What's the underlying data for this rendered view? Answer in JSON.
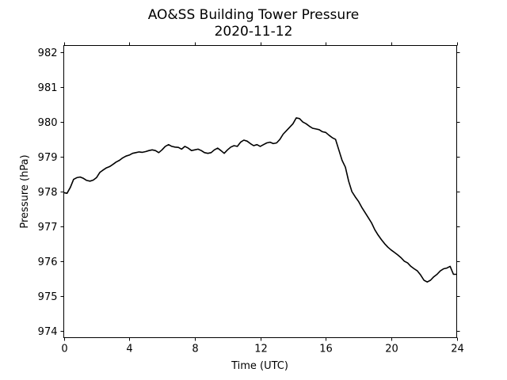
{
  "chart_data": {
    "type": "line",
    "title": "AO&SS Building Tower Pressure",
    "subtitle": "2020-11-12",
    "xlabel": "Time (UTC)",
    "ylabel": "Pressure (hPa)",
    "xlim": [
      0,
      24
    ],
    "ylim": [
      973.8,
      982.2
    ],
    "xticks": [
      0,
      4,
      8,
      12,
      16,
      20,
      24
    ],
    "yticks": [
      974,
      975,
      976,
      977,
      978,
      979,
      980,
      981,
      982
    ],
    "grid": false,
    "series": [
      {
        "color": "#000000",
        "x": [
          0.0,
          0.2,
          0.4,
          0.6,
          0.8,
          1.0,
          1.2,
          1.4,
          1.6,
          1.8,
          2.0,
          2.2,
          2.4,
          2.6,
          2.8,
          3.0,
          3.2,
          3.4,
          3.6,
          3.8,
          4.0,
          4.2,
          4.4,
          4.6,
          4.8,
          5.0,
          5.2,
          5.4,
          5.6,
          5.8,
          6.0,
          6.2,
          6.4,
          6.6,
          6.8,
          7.0,
          7.2,
          7.4,
          7.6,
          7.8,
          8.0,
          8.2,
          8.4,
          8.6,
          8.8,
          9.0,
          9.2,
          9.4,
          9.6,
          9.8,
          10.0,
          10.2,
          10.4,
          10.6,
          10.8,
          11.0,
          11.2,
          11.4,
          11.6,
          11.8,
          12.0,
          12.2,
          12.4,
          12.6,
          12.8,
          13.0,
          13.2,
          13.4,
          13.6,
          13.8,
          14.0,
          14.2,
          14.4,
          14.6,
          14.8,
          15.0,
          15.2,
          15.4,
          15.6,
          15.8,
          16.0,
          16.2,
          16.4,
          16.6,
          16.8,
          17.0,
          17.2,
          17.4,
          17.6,
          17.8,
          18.0,
          18.2,
          18.4,
          18.6,
          18.8,
          19.0,
          19.2,
          19.4,
          19.6,
          19.8,
          20.0,
          20.2,
          20.4,
          20.6,
          20.8,
          21.0,
          21.2,
          21.4,
          21.6,
          21.8,
          22.0,
          22.2,
          22.4,
          22.6,
          22.8,
          23.0,
          23.2,
          23.4,
          23.6,
          23.8,
          24.0
        ],
        "values": [
          977.97,
          977.95,
          978.12,
          978.35,
          978.4,
          978.42,
          978.38,
          978.32,
          978.3,
          978.33,
          978.4,
          978.55,
          978.62,
          978.68,
          978.72,
          978.78,
          978.85,
          978.9,
          978.97,
          979.02,
          979.05,
          979.1,
          979.12,
          979.14,
          979.13,
          979.15,
          979.18,
          979.2,
          979.18,
          979.12,
          979.2,
          979.3,
          979.35,
          979.3,
          979.28,
          979.27,
          979.22,
          979.3,
          979.25,
          979.18,
          979.2,
          979.22,
          979.18,
          979.12,
          979.1,
          979.12,
          979.2,
          979.25,
          979.18,
          979.1,
          979.2,
          979.28,
          979.32,
          979.3,
          979.42,
          979.48,
          979.45,
          979.38,
          979.32,
          979.35,
          979.3,
          979.35,
          979.4,
          979.42,
          979.38,
          979.4,
          979.5,
          979.65,
          979.75,
          979.85,
          979.95,
          980.12,
          980.1,
          980.0,
          979.95,
          979.88,
          979.82,
          979.8,
          979.78,
          979.72,
          979.7,
          979.62,
          979.55,
          979.5,
          979.2,
          978.9,
          978.7,
          978.3,
          978.0,
          977.85,
          977.72,
          977.55,
          977.4,
          977.25,
          977.1,
          976.9,
          976.75,
          976.62,
          976.5,
          976.4,
          976.32,
          976.25,
          976.18,
          976.1,
          976.0,
          975.95,
          975.85,
          975.78,
          975.72,
          975.6,
          975.45,
          975.4,
          975.45,
          975.55,
          975.62,
          975.72,
          975.78,
          975.8,
          975.85,
          975.62,
          975.62
        ]
      }
    ]
  }
}
